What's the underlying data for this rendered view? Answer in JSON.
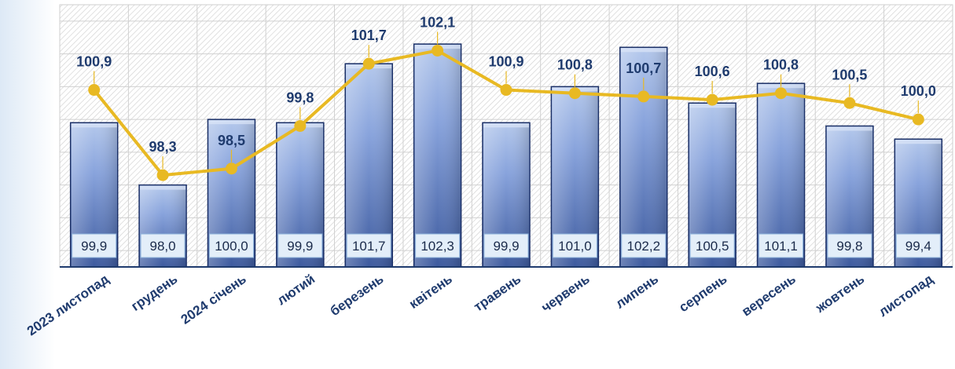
{
  "chart_data": {
    "type": "bar",
    "categories": [
      "2023 листопад",
      "грудень",
      "2024 січень",
      "лютий",
      "березень",
      "квітень",
      "травень",
      "червень",
      "липень",
      "серпень",
      "вересень",
      "жовтень",
      "листопад"
    ],
    "series": [
      {
        "type": "bar",
        "values": [
          99.9,
          98.0,
          100.0,
          99.9,
          101.7,
          102.3,
          99.9,
          101.0,
          102.2,
          100.5,
          101.1,
          99.8,
          99.4
        ],
        "labels": [
          "99,9",
          "98,0",
          "100,0",
          "99,9",
          "101,7",
          "102,3",
          "99,9",
          "101,0",
          "102,2",
          "100,5",
          "101,1",
          "99,8",
          "99,4"
        ],
        "color": "#7f9ad6"
      },
      {
        "type": "line",
        "values": [
          100.9,
          98.3,
          98.5,
          99.8,
          101.7,
          102.1,
          100.9,
          100.8,
          100.7,
          100.6,
          100.8,
          100.5,
          100.0
        ],
        "labels": [
          "100,9",
          "98,3",
          "98,5",
          "99,8",
          "101,7",
          "102,1",
          "100,9",
          "100,8",
          "100,7",
          "100,6",
          "100,8",
          "100,5",
          "100,0"
        ],
        "color": "#e8b923"
      }
    ],
    "ylim": [
      95.5,
      103.5
    ],
    "grid": true,
    "legend": "none",
    "colors": {
      "bar_top": "#b4c8ec",
      "bar_bottom": "#3d5a9e",
      "bar_stroke": "#1a2f66",
      "line": "#e8b923",
      "label_text": "#1f3b6e",
      "axis_text": "#1f3b6e",
      "box_fill": "#e3eef9",
      "box_stroke": "#8fb4db"
    }
  }
}
